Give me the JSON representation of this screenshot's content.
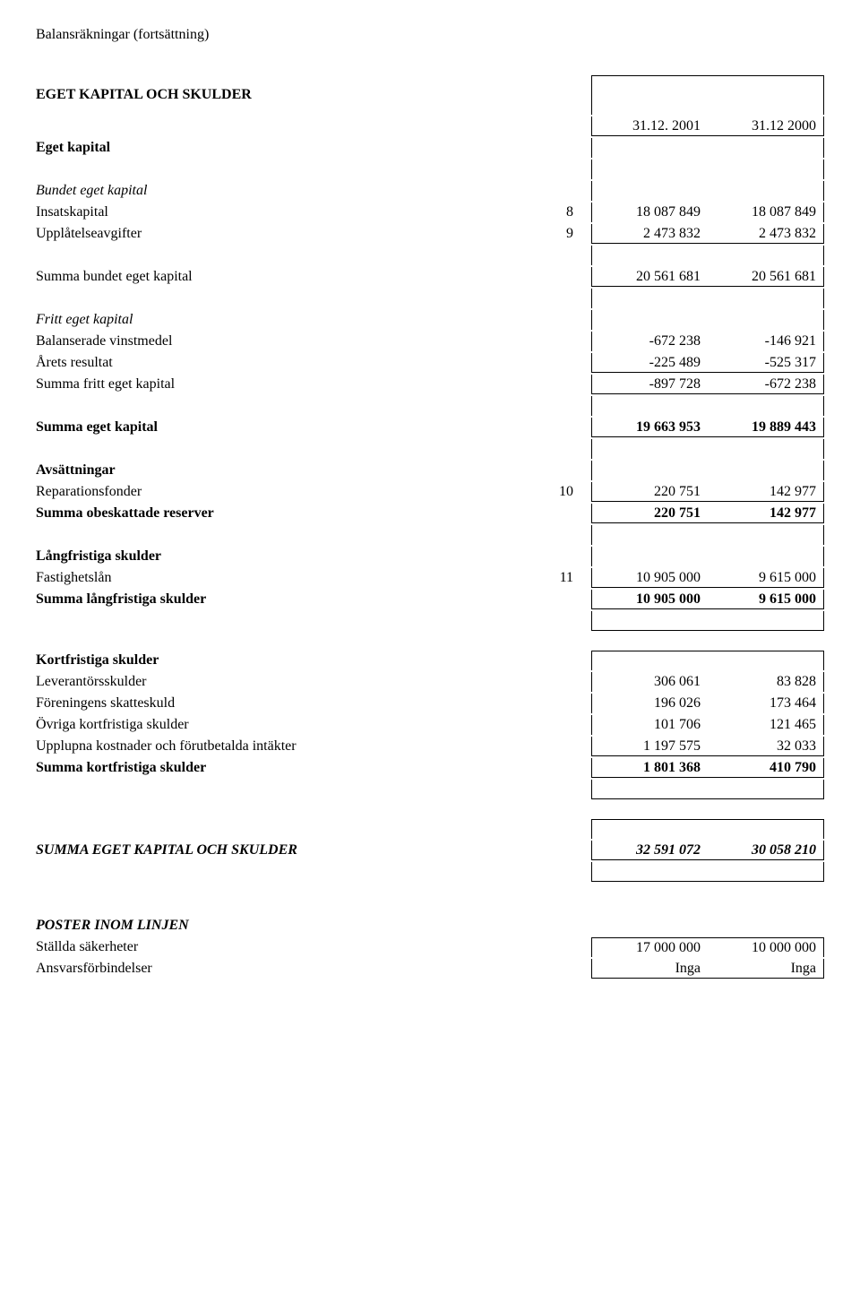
{
  "page_title": "Balansräkningar (fortsättning)",
  "main_heading": "EGET KAPITAL OCH SKULDER",
  "date_headers": {
    "col1": "31.12. 2001",
    "col2": "31.12 2000"
  },
  "eget_kapital": {
    "heading": "Eget kapital",
    "bundet_heading": "Bundet eget kapital",
    "insatskapital": {
      "label": "Insatskapital",
      "note": "8",
      "v1": "18 087 849",
      "v2": "18 087 849"
    },
    "upplatelseavgifter": {
      "label": "Upplåtelseavgifter",
      "note": "9",
      "v1": "2 473 832",
      "v2": "2 473 832"
    },
    "summa_bundet": {
      "label": "Summa bundet eget kapital",
      "v1": "20 561 681",
      "v2": "20 561 681"
    },
    "fritt_heading": "Fritt eget kapital",
    "balanserade": {
      "label": "Balanserade vinstmedel",
      "v1": "-672 238",
      "v2": "-146 921"
    },
    "arets_resultat": {
      "label": "Årets resultat",
      "v1": "-225 489",
      "v2": "-525 317"
    },
    "summa_fritt": {
      "label": "Summa fritt eget kapital",
      "v1": "-897 728",
      "v2": "-672 238"
    },
    "summa_eget": {
      "label": "Summa eget kapital",
      "v1": "19 663 953",
      "v2": "19 889 443"
    }
  },
  "avsattningar": {
    "heading": "Avsättningar",
    "reparationsfonder": {
      "label": "Reparationsfonder",
      "note": "10",
      "v1": "220 751",
      "v2": "142 977"
    },
    "summa": {
      "label": "Summa obeskattade reserver",
      "v1": "220 751",
      "v2": "142 977"
    }
  },
  "langfristiga": {
    "heading": "Långfristiga skulder",
    "fastighetslan": {
      "label": "Fastighetslån",
      "note": "11",
      "v1": "10 905 000",
      "v2": "9 615 000"
    },
    "summa": {
      "label": "Summa långfristiga skulder",
      "v1": "10 905 000",
      "v2": "9 615 000"
    }
  },
  "kortfristiga": {
    "heading": "Kortfristiga skulder",
    "leverantor": {
      "label": "Leverantörsskulder",
      "v1": "306 061",
      "v2": "83 828"
    },
    "skatteskuld": {
      "label": "Föreningens skatteskuld",
      "v1": "196 026",
      "v2": "173 464"
    },
    "ovriga": {
      "label": "Övriga kortfristiga skulder",
      "v1": "101 706",
      "v2": "121 465"
    },
    "upplupna": {
      "label": "Upplupna kostnader och förutbetalda intäkter",
      "v1": "1 197 575",
      "v2": "32 033"
    },
    "summa": {
      "label": "Summa kortfristiga skulder",
      "v1": "1 801 368",
      "v2": "410 790"
    }
  },
  "summa_total": {
    "label": "SUMMA EGET KAPITAL OCH SKULDER",
    "v1": "32 591 072",
    "v2": "30 058 210"
  },
  "poster": {
    "heading": "POSTER INOM LINJEN",
    "stallda": {
      "label": "Ställda säkerheter",
      "v1": "17 000 000",
      "v2": "10 000 000"
    },
    "ansvar": {
      "label": "Ansvarsförbindelser",
      "v1": "Inga",
      "v2": "Inga"
    }
  }
}
